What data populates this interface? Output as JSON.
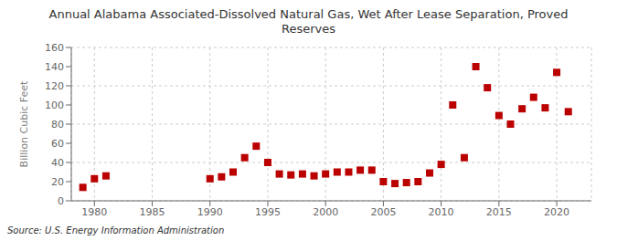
{
  "chart_data": {
    "type": "scatter",
    "title": "Annual Alabama Associated-Dissolved Natural Gas, Wet After Lease Separation, Proved\nReserves",
    "ylabel": "Billion Cubic Feet",
    "annotations": [
      "Source: U.S. Energy Information Administration"
    ],
    "color": "#bb0000",
    "marker": "square",
    "grid": true,
    "x": [
      1979,
      1980,
      1981,
      1990,
      1991,
      1992,
      1993,
      1994,
      1995,
      1996,
      1997,
      1998,
      1999,
      2000,
      2001,
      2002,
      2003,
      2004,
      2005,
      2006,
      2007,
      2008,
      2009,
      2010,
      2011,
      2012,
      2013,
      2014,
      2015,
      2016,
      2017,
      2018,
      2019,
      2020,
      2021
    ],
    "values": [
      14,
      23,
      26,
      23,
      25,
      30,
      45,
      57,
      40,
      28,
      27,
      28,
      26,
      28,
      30,
      30,
      32,
      32,
      20,
      18,
      19,
      20,
      29,
      38,
      100,
      45,
      140,
      118,
      89,
      80,
      96,
      108,
      97,
      134,
      93
    ],
    "xlim": [
      1978,
      2023
    ],
    "ylim": [
      0,
      160
    ],
    "xticks": [
      1980,
      1985,
      1990,
      1995,
      2000,
      2005,
      2010,
      2015,
      2020
    ],
    "yticks": [
      0,
      20,
      40,
      60,
      80,
      100,
      120,
      140,
      160
    ]
  }
}
